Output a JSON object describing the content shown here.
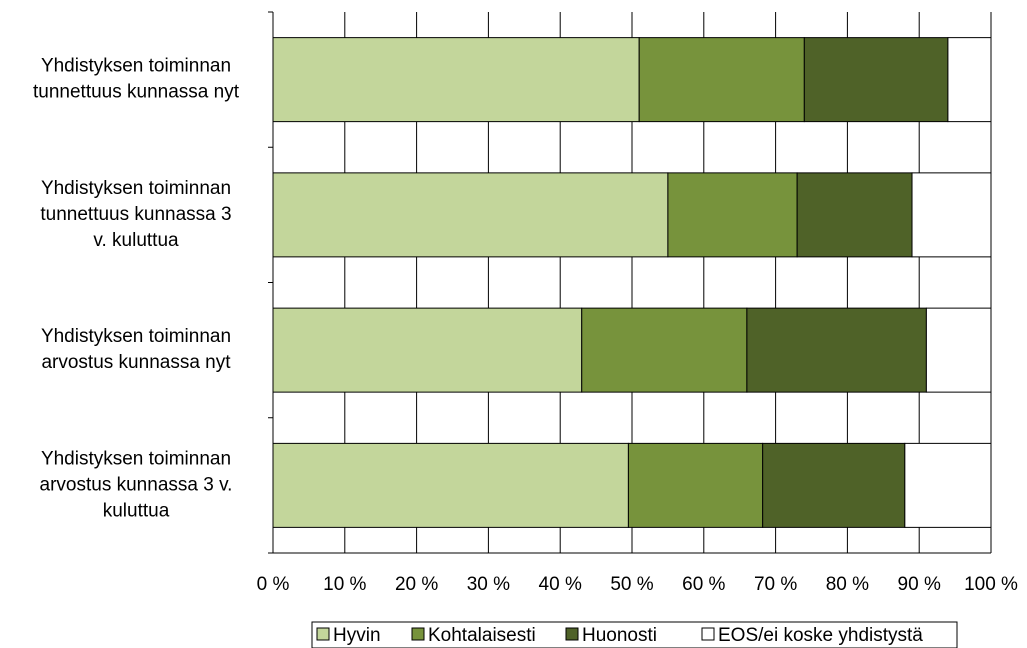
{
  "chart_data": {
    "type": "bar",
    "orientation": "horizontal",
    "stacked": "percent",
    "title": "",
    "xlabel": "",
    "ylabel": "",
    "xlim": [
      0,
      100
    ],
    "x_ticks": [
      "0 %",
      "10 %",
      "20 %",
      "30 %",
      "40 %",
      "50 %",
      "60 %",
      "70 %",
      "80 %",
      "90 %",
      "100 %"
    ],
    "grid": true,
    "legend_position": "bottom",
    "categories": [
      [
        "Yhdistyksen toiminnan",
        "tunnettuus kunnassa nyt"
      ],
      [
        "Yhdistyksen toiminnan",
        "tunnettuus kunnassa 3",
        "v. kuluttua"
      ],
      [
        "Yhdistyksen toiminnan",
        "arvostus kunnassa nyt"
      ],
      [
        "Yhdistyksen toiminnan",
        "arvostus kunnassa 3 v.",
        "kuluttua"
      ]
    ],
    "series": [
      {
        "name": "Hyvin",
        "color": "#c3d69b",
        "values": [
          51,
          55,
          43,
          49.5
        ]
      },
      {
        "name": "Kohtalaisesti",
        "color": "#77933c",
        "values": [
          23,
          18,
          23,
          18.7
        ]
      },
      {
        "name": "Huonosti",
        "color": "#4f6228",
        "values": [
          20,
          16,
          25,
          19.8
        ]
      },
      {
        "name": "EOS/ei koske yhdistystä",
        "color": "#ffffff",
        "values": [
          6,
          11,
          9,
          12
        ]
      }
    ]
  }
}
